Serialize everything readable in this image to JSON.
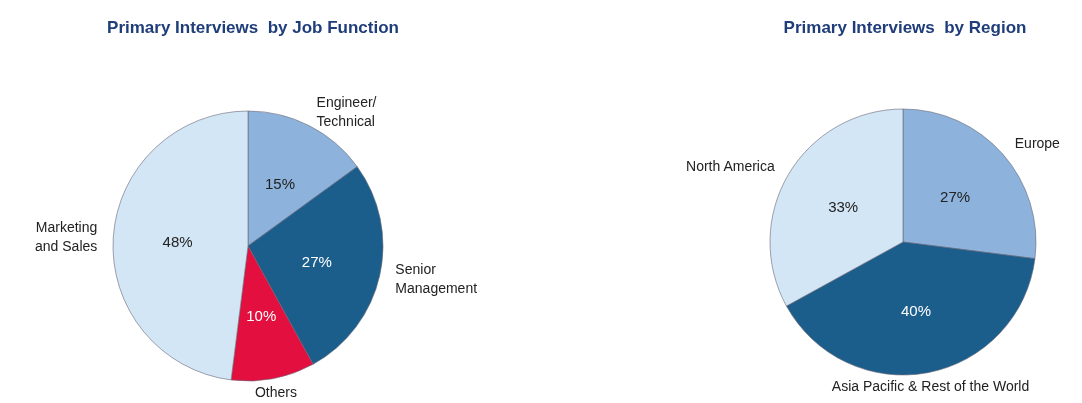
{
  "chart_data": [
    {
      "type": "pie",
      "title": "Primary Interviews  by Job Function",
      "categories": [
        "Engineer/\nTechnical",
        "Senior\nManagement",
        "Others",
        "Marketing\nand Sales"
      ],
      "values": [
        15,
        27,
        10,
        48
      ],
      "value_labels": [
        "15%",
        "27%",
        "10%",
        "48%"
      ],
      "colors": [
        "#8db3dc",
        "#1b5e8c",
        "#e3103f",
        "#d3e6f5"
      ],
      "legend": false
    },
    {
      "type": "pie",
      "title": "Primary Interviews  by Region",
      "categories": [
        "Europe",
        "Asia Pacific & Rest of the World",
        "North America"
      ],
      "values": [
        27,
        40,
        33
      ],
      "value_labels": [
        "27%",
        "40%",
        "33%"
      ],
      "colors": [
        "#8db3dc",
        "#1b5e8c",
        "#d3e6f5"
      ],
      "legend": false
    }
  ]
}
